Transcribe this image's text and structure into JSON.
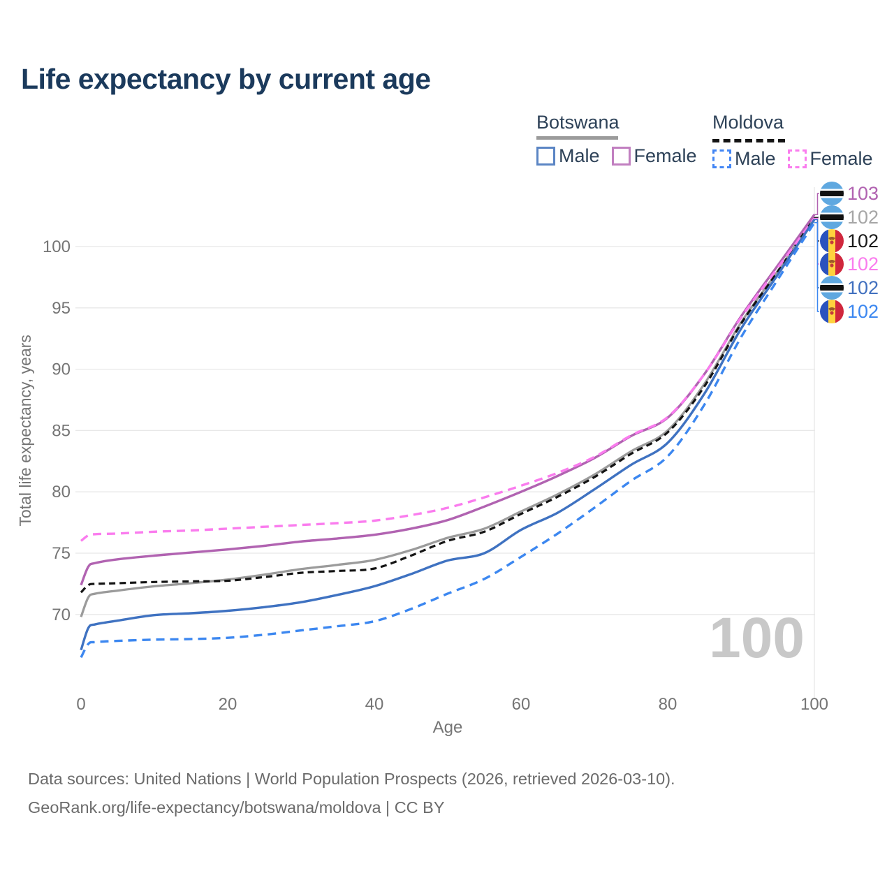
{
  "title": "Life expectancy by current age",
  "legend": {
    "groups": [
      {
        "country": "Botswana",
        "line_style": "solid",
        "underline_color": "#9b9b9b",
        "items": [
          {
            "label": "Male",
            "color": "#5b85c4"
          },
          {
            "label": "Female",
            "color": "#c17fc0"
          }
        ]
      },
      {
        "country": "Moldova",
        "line_style": "dashed",
        "underline_color": "#141414",
        "items": [
          {
            "label": "Male",
            "color": "#4285f4"
          },
          {
            "label": "Female",
            "color": "#fa7cee"
          }
        ]
      }
    ]
  },
  "watermark_age": "100",
  "footer": {
    "sources_line": "Data sources: United Nations | World Population Prospects (2026, retrieved 2026-03-10).",
    "attribution_line": "GeoRank.org/life-expectancy/botswana/moldova | CC BY"
  },
  "chart_data": {
    "type": "line",
    "title": "Life expectancy by current age",
    "xlabel": "Age",
    "ylabel": "Total life expectancy, years",
    "x_ticks": [
      0,
      20,
      40,
      60,
      80,
      100
    ],
    "y_ticks": [
      70,
      75,
      80,
      85,
      90,
      95,
      100
    ],
    "xlim": [
      0,
      100
    ],
    "ylim": [
      66,
      104
    ],
    "grid": "horizontal",
    "age_cursor": 100,
    "legend_position": "top-right",
    "anchor_ages": [
      0,
      1,
      2,
      5,
      10,
      15,
      20,
      25,
      30,
      35,
      40,
      45,
      50,
      55,
      60,
      65,
      70,
      75,
      80,
      85,
      90,
      95,
      100
    ],
    "series": [
      {
        "id": "bw_both",
        "name": "Botswana (both sexes)",
        "country": "Botswana",
        "sex": "both",
        "color": "#9b9b9b",
        "dash": "solid",
        "width": 3.3,
        "values": [
          69.8,
          71.4,
          71.7,
          71.95,
          72.3,
          72.55,
          72.85,
          73.25,
          73.7,
          74.05,
          74.45,
          75.25,
          76.25,
          77.0,
          78.4,
          79.8,
          81.4,
          83.3,
          85.0,
          88.8,
          93.8,
          98.0,
          102.4
        ]
      },
      {
        "id": "md_both",
        "name": "Moldova (both sexes)",
        "country": "Moldova",
        "sex": "both",
        "color": "#141414",
        "dash": "dashed",
        "width": 3.2,
        "values": [
          71.8,
          72.4,
          72.5,
          72.55,
          72.65,
          72.7,
          72.75,
          73.05,
          73.4,
          73.55,
          73.75,
          74.8,
          76.0,
          76.75,
          78.2,
          79.6,
          81.2,
          83.1,
          84.85,
          88.6,
          93.7,
          97.95,
          102.35
        ]
      },
      {
        "id": "bw_female",
        "name": "Botswana Female",
        "country": "Botswana",
        "sex": "female",
        "color": "#b163b1",
        "dash": "solid",
        "width": 3.4,
        "values": [
          72.4,
          73.9,
          74.2,
          74.5,
          74.8,
          75.05,
          75.3,
          75.6,
          75.95,
          76.2,
          76.5,
          77.0,
          77.7,
          78.8,
          80.0,
          81.3,
          82.75,
          84.55,
          86.05,
          89.6,
          94.3,
          98.45,
          102.6
        ]
      },
      {
        "id": "md_female",
        "name": "Moldova Female",
        "country": "Moldova",
        "sex": "female",
        "color": "#fa7cee",
        "dash": "dashed",
        "width": 3.4,
        "values": [
          76.0,
          76.45,
          76.55,
          76.6,
          76.75,
          76.85,
          77.0,
          77.15,
          77.3,
          77.45,
          77.65,
          78.1,
          78.7,
          79.55,
          80.5,
          81.55,
          82.85,
          84.6,
          86.1,
          89.6,
          94.2,
          98.25,
          102.3
        ]
      },
      {
        "id": "bw_male",
        "name": "Botswana Male",
        "country": "Botswana",
        "sex": "male",
        "color": "#3f72c1",
        "dash": "solid",
        "width": 3.4,
        "values": [
          67.1,
          68.9,
          69.2,
          69.5,
          69.95,
          70.1,
          70.3,
          70.6,
          71.0,
          71.6,
          72.3,
          73.3,
          74.4,
          75.0,
          76.9,
          78.3,
          80.2,
          82.2,
          84.0,
          88.0,
          93.3,
          97.7,
          102.2
        ]
      },
      {
        "id": "md_male",
        "name": "Moldova Male",
        "country": "Moldova",
        "sex": "male",
        "color": "#3c87f0",
        "dash": "dashed",
        "width": 3.4,
        "values": [
          66.5,
          67.6,
          67.75,
          67.85,
          67.95,
          68.0,
          68.1,
          68.35,
          68.7,
          69.05,
          69.45,
          70.45,
          71.7,
          72.9,
          74.7,
          76.6,
          78.7,
          80.9,
          82.9,
          87.1,
          92.6,
          97.3,
          101.95
        ]
      }
    ],
    "end_labels": [
      {
        "series": "bw_female",
        "flag": "botswana",
        "value": "103",
        "color": "#b163b1"
      },
      {
        "series": "bw_both",
        "flag": "botswana",
        "value": "102",
        "color": "#a6a6a6"
      },
      {
        "series": "md_both",
        "flag": "moldova",
        "value": "102",
        "color": "#1a1a1a"
      },
      {
        "series": "md_female",
        "flag": "moldova",
        "value": "102",
        "color": "#fa7cee"
      },
      {
        "series": "bw_male",
        "flag": "botswana",
        "value": "102",
        "color": "#4170bf"
      },
      {
        "series": "md_male",
        "flag": "moldova",
        "value": "102",
        "color": "#3c87f0"
      }
    ],
    "colors": {
      "grid": "#e8e8e8",
      "tick_text": "#757575",
      "title_text": "#1b3a5c",
      "watermark": "#c8c8c8",
      "botswana_flag_blue": "#5fa8e0",
      "moldova_flag_blue": "#2a52be",
      "moldova_flag_yellow": "#ffd23e",
      "moldova_flag_red": "#d0273d"
    }
  }
}
